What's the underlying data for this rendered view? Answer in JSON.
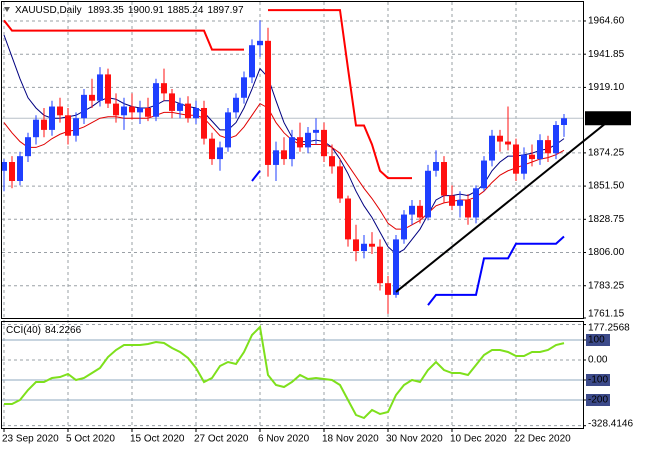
{
  "chart_data": [
    {
      "type": "candlestick",
      "title": "XAUUSD,Daily",
      "categories": [
        "23 Sep 2020",
        null,
        null,
        null,
        null,
        null,
        null,
        null,
        "5 Oct 2020",
        null,
        null,
        null,
        null,
        null,
        null,
        null,
        "15 Oct 2020",
        null,
        null,
        null,
        null,
        null,
        null,
        null,
        "27 Oct 2020",
        null,
        null,
        null,
        null,
        null,
        null,
        null,
        "6 Nov 2020",
        null,
        null,
        null,
        null,
        null,
        null,
        null,
        "18 Nov 2020",
        null,
        null,
        null,
        null,
        null,
        null,
        null,
        "30 Nov 2020",
        null,
        null,
        null,
        null,
        null,
        null,
        null,
        "10 Dec 2020",
        null,
        null,
        null,
        null,
        null,
        null,
        null,
        "22 Dec 2020",
        null,
        null,
        null,
        null,
        null,
        null
      ],
      "open": [
        1862,
        1868,
        1855,
        1872,
        1885,
        1897,
        1890,
        1906,
        1900,
        1886,
        1898,
        1914,
        1910,
        1928,
        1908,
        1900,
        1906,
        1902,
        1905,
        1899,
        1922,
        1915,
        1903,
        1908,
        1898,
        1905,
        1884,
        1870,
        1878,
        1902,
        1912,
        1926,
        1948,
        1951,
        1866,
        1876,
        1870,
        1885,
        1878,
        1888,
        1890,
        1872,
        1865,
        1843,
        1815,
        1807,
        1812,
        1810,
        1785,
        1777,
        1815,
        1832,
        1838,
        1830,
        1862,
        1868,
        1845,
        1838,
        1842,
        1830,
        1850,
        1869,
        1886,
        1882,
        1880,
        1860,
        1873,
        1870,
        1883,
        1874,
        1893.35
      ],
      "high": [
        1870,
        1872,
        1875,
        1888,
        1900,
        1905,
        1910,
        1912,
        1905,
        1902,
        1918,
        1925,
        1933,
        1932,
        1915,
        1912,
        1915,
        1910,
        1912,
        1925,
        1932,
        1918,
        1912,
        1913,
        1910,
        1910,
        1888,
        1882,
        1905,
        1915,
        1930,
        1952,
        1965,
        1960,
        1882,
        1885,
        1890,
        1895,
        1892,
        1898,
        1895,
        1880,
        1870,
        1845,
        1825,
        1818,
        1820,
        1815,
        1790,
        1818,
        1835,
        1842,
        1842,
        1866,
        1876,
        1872,
        1852,
        1848,
        1846,
        1852,
        1872,
        1890,
        1890,
        1906,
        1884,
        1878,
        1880,
        1887,
        1886,
        1896,
        1900.91
      ],
      "low": [
        1848,
        1850,
        1852,
        1868,
        1880,
        1885,
        1886,
        1895,
        1880,
        1882,
        1894,
        1905,
        1906,
        1905,
        1895,
        1890,
        1897,
        1894,
        1896,
        1896,
        1910,
        1898,
        1898,
        1895,
        1894,
        1880,
        1866,
        1862,
        1875,
        1898,
        1908,
        1922,
        1940,
        1858,
        1855,
        1866,
        1865,
        1875,
        1874,
        1880,
        1868,
        1860,
        1840,
        1810,
        1800,
        1802,
        1805,
        1780,
        1764,
        1775,
        1812,
        1825,
        1826,
        1828,
        1858,
        1840,
        1835,
        1830,
        1825,
        1826,
        1848,
        1865,
        1875,
        1876,
        1855,
        1856,
        1865,
        1866,
        1868,
        1870,
        1885.24
      ],
      "close": [
        1868,
        1855,
        1872,
        1885,
        1897,
        1890,
        1906,
        1900,
        1886,
        1898,
        1914,
        1910,
        1928,
        1908,
        1900,
        1906,
        1902,
        1905,
        1899,
        1922,
        1915,
        1903,
        1908,
        1898,
        1905,
        1884,
        1870,
        1878,
        1902,
        1912,
        1926,
        1948,
        1951,
        1866,
        1876,
        1870,
        1885,
        1878,
        1888,
        1890,
        1872,
        1865,
        1843,
        1815,
        1807,
        1812,
        1810,
        1785,
        1777,
        1815,
        1832,
        1838,
        1830,
        1862,
        1868,
        1845,
        1838,
        1842,
        1830,
        1850,
        1869,
        1886,
        1882,
        1880,
        1860,
        1873,
        1870,
        1883,
        1874,
        1893.35,
        1897.97
      ],
      "up_color": "#1f3fff",
      "down_color": "#ff1010",
      "series": [
        {
          "color": "#000080",
          "width": 1,
          "values": [
            1955,
            1940,
            1925,
            1912,
            1905,
            1900,
            1898,
            1898,
            1899,
            1900,
            1903,
            1906,
            1910,
            1912,
            1911,
            1908,
            1906,
            1905,
            1905,
            1907,
            1910,
            1910,
            1908,
            1906,
            1905,
            1902,
            1896,
            1890,
            1890,
            1895,
            1905,
            1918,
            1932,
            1926,
            1910,
            1895,
            1885,
            1882,
            1882,
            1883,
            1882,
            1878,
            1870,
            1860,
            1848,
            1838,
            1830,
            1820,
            1810,
            1805,
            1808,
            1815,
            1822,
            1832,
            1842,
            1845,
            1845,
            1846,
            1845,
            1848,
            1853,
            1862,
            1868,
            1872,
            1872,
            1873,
            1874,
            1876,
            1877,
            1880,
            1884
          ]
        },
        {
          "color": "#e00000",
          "width": 1,
          "values": [
            1895,
            1888,
            1882,
            1878,
            1878,
            1880,
            1884,
            1887,
            1889,
            1890,
            1892,
            1895,
            1898,
            1899,
            1899,
            1898,
            1898,
            1898,
            1898,
            1900,
            1902,
            1902,
            1901,
            1900,
            1900,
            1898,
            1892,
            1886,
            1884,
            1886,
            1892,
            1900,
            1908,
            1905,
            1895,
            1888,
            1883,
            1880,
            1880,
            1880,
            1880,
            1878,
            1874,
            1866,
            1858,
            1850,
            1843,
            1835,
            1826,
            1822,
            1822,
            1825,
            1828,
            1833,
            1838,
            1840,
            1841,
            1842,
            1842,
            1844,
            1848,
            1854,
            1859,
            1862,
            1864,
            1866,
            1868,
            1870,
            1871,
            1873,
            1876
          ]
        },
        {
          "color": "#ff0000",
          "width": 2,
          "values": [
            1965,
            1958,
            1958,
            1958,
            1958,
            1958,
            1958,
            1958,
            1958,
            1958,
            1958,
            1958,
            1958,
            1958,
            1958,
            1958,
            1958,
            1958,
            1958,
            1958,
            1958,
            1958,
            1958,
            1958,
            1958,
            1958,
            1945,
            1945,
            1945,
            1945,
            1945,
            null,
            null,
            1972,
            1972,
            1972,
            1972,
            1972,
            1972,
            1972,
            1972,
            1972,
            1972,
            1932,
            1893,
            1893,
            1880,
            1862,
            1857,
            1857,
            1857,
            1857,
            null,
            null,
            null,
            null,
            null,
            null,
            null,
            null,
            null,
            null,
            null,
            null,
            null,
            null,
            null,
            null,
            null,
            null,
            null
          ]
        },
        {
          "color": "#0000ff",
          "width": 2,
          "values": [
            null,
            null,
            null,
            null,
            null,
            null,
            null,
            null,
            null,
            null,
            null,
            null,
            null,
            null,
            null,
            null,
            null,
            null,
            null,
            null,
            null,
            null,
            null,
            null,
            null,
            null,
            null,
            null,
            null,
            null,
            null,
            1855,
            1862,
            null,
            null,
            null,
            null,
            null,
            null,
            null,
            null,
            null,
            null,
            null,
            null,
            null,
            null,
            null,
            null,
            null,
            null,
            null,
            null,
            1770,
            1777,
            1777,
            1777,
            1777,
            1777,
            1777,
            1802,
            1802,
            1802,
            1802,
            1812,
            1812,
            1812,
            1812,
            1812,
            1812,
            1817
          ]
        }
      ],
      "trendline": {
        "color": "#000000",
        "x": [
          49,
          76
        ],
        "values": [
          1779,
          1898
        ]
      },
      "ylim": [
        1761.15,
        1977.6
      ],
      "yticks": [
        {
          "value": 1964.6,
          "label": "1964.60"
        },
        1941.85,
        {
          "value": 1919.1,
          "label": "1919.10"
        },
        1874.25,
        {
          "value": 1851.5,
          "label": "1851.50"
        },
        1828.75,
        {
          "value": 1806,
          "label": "1806.00"
        },
        1783.25,
        1761.15
      ],
      "grid": true
    },
    {
      "type": "line",
      "title": "CCI(40)",
      "color": "#7ee01c",
      "values": [
        -220,
        -220,
        -200,
        -150,
        -110,
        -110,
        -90,
        -85,
        -70,
        -100,
        -90,
        -65,
        -40,
        15,
        50,
        75,
        75,
        75,
        80,
        90,
        85,
        60,
        40,
        10,
        -40,
        -110,
        -90,
        -30,
        -10,
        -20,
        40,
        125,
        165,
        -75,
        -125,
        -135,
        -110,
        -75,
        -95,
        -90,
        -95,
        -100,
        -125,
        -200,
        -275,
        -290,
        -250,
        -270,
        -260,
        -175,
        -125,
        -100,
        -110,
        -50,
        -10,
        -50,
        -65,
        -65,
        -75,
        -25,
        25,
        50,
        50,
        40,
        20,
        20,
        40,
        40,
        50,
        75,
        84.2266
      ],
      "ylim": [
        -340,
        190
      ],
      "yticks": [
        177.2568,
        100,
        {
          "value": 0,
          "label": "0.00"
        },
        -100,
        -200,
        -328.4146
      ],
      "levels": [
        100,
        -100,
        -200
      ],
      "grid": true
    }
  ]
}
